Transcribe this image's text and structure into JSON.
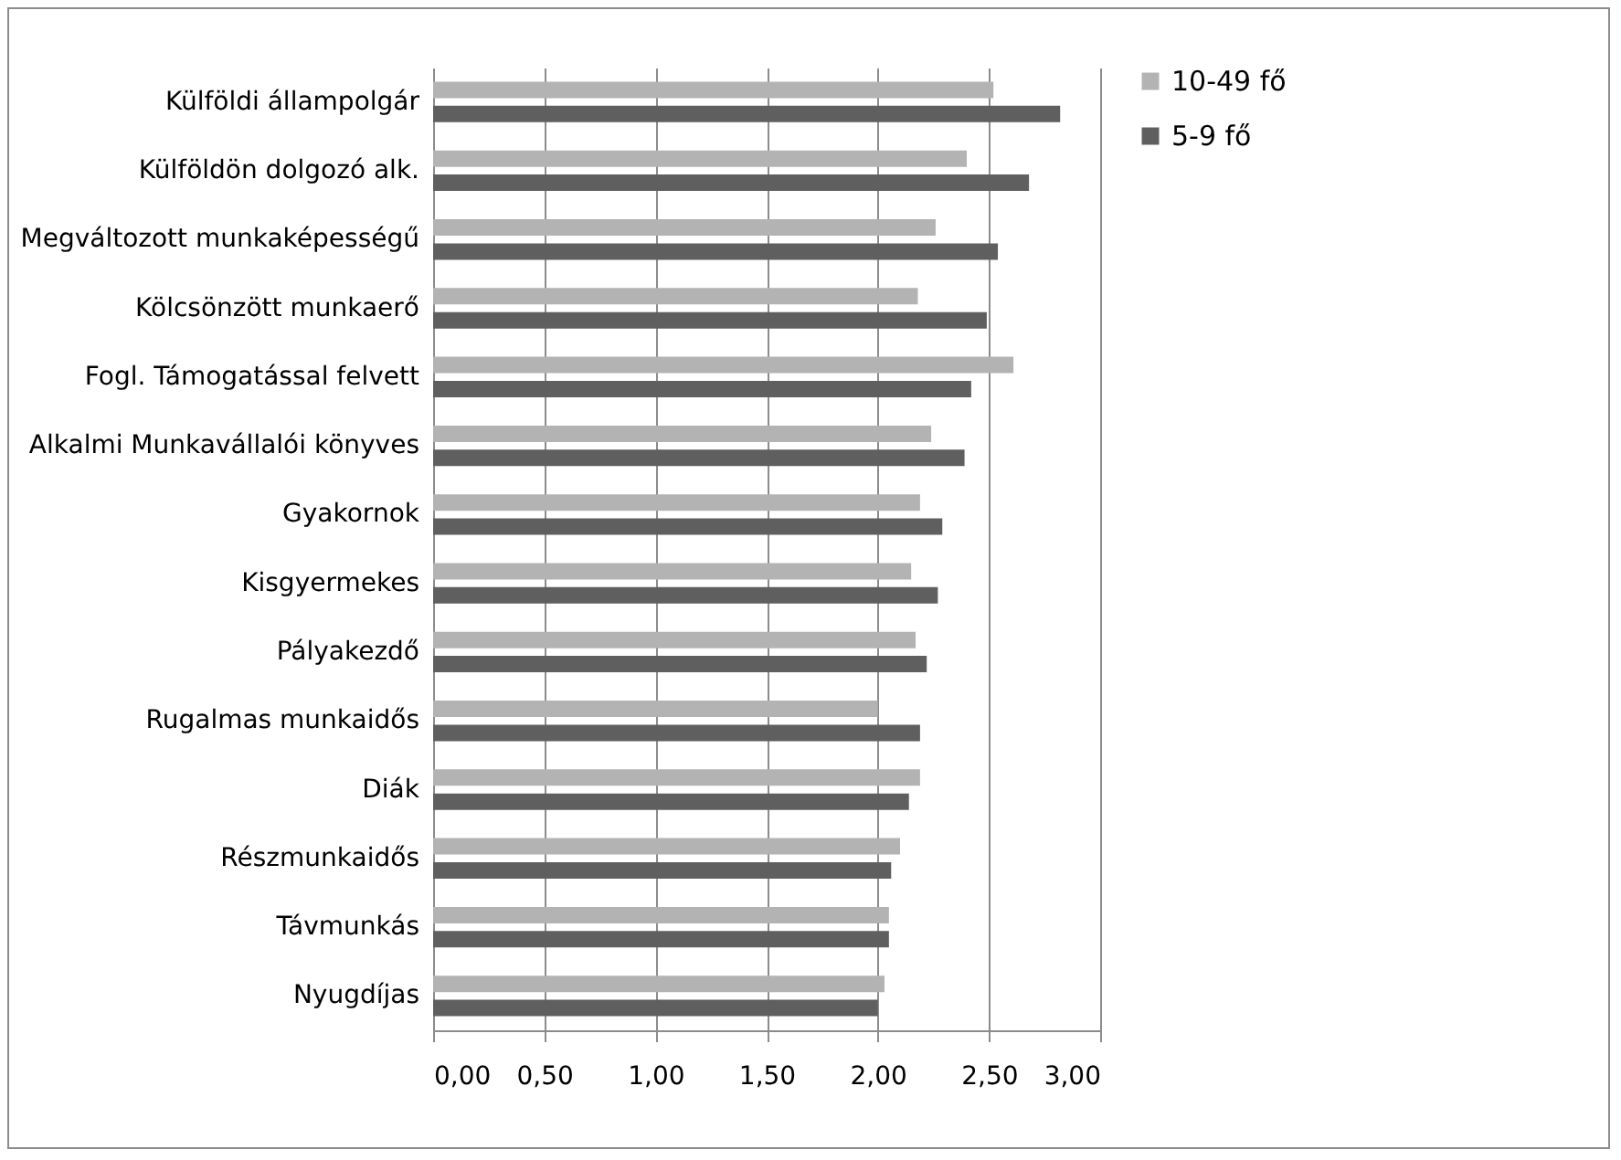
{
  "chart_data": {
    "type": "bar",
    "orientation": "horizontal",
    "categories": [
      "Külföldi állampolgár",
      "Külföldön dolgozó alk.",
      "Megváltozott munkaképességű",
      "Kölcsönzött munkaerő",
      "Fogl. Támogatással felvett",
      "Alkalmi Munkavállalói könyves",
      "Gyakornok",
      "Kisgyermekes",
      "Pályakezdő",
      "Rugalmas munkaidős",
      "Diák",
      "Részmunkaidős",
      "Távmunkás",
      "Nyugdíjas"
    ],
    "series": [
      {
        "name": "10-49 fő",
        "color": "#b3b3b3",
        "values": [
          2.52,
          2.4,
          2.26,
          2.18,
          2.61,
          2.24,
          2.19,
          2.15,
          2.17,
          2.0,
          2.19,
          2.1,
          2.05,
          2.03
        ]
      },
      {
        "name": "5-9 fő",
        "color": "#5f5f5f",
        "values": [
          2.82,
          2.68,
          2.54,
          2.49,
          2.42,
          2.39,
          2.29,
          2.27,
          2.22,
          2.19,
          2.14,
          2.06,
          2.05,
          2.0
        ]
      }
    ],
    "xlim": [
      0,
      3
    ],
    "xticks": [
      {
        "value": 0,
        "label": "0,00"
      },
      {
        "value": 0.5,
        "label": "0,50"
      },
      {
        "value": 1,
        "label": "1,00"
      },
      {
        "value": 1.5,
        "label": "1,50"
      },
      {
        "value": 2,
        "label": "2,00"
      },
      {
        "value": 2.5,
        "label": "2,50"
      },
      {
        "value": 3,
        "label": "3,00"
      }
    ],
    "grid": "x",
    "legend": "right"
  }
}
